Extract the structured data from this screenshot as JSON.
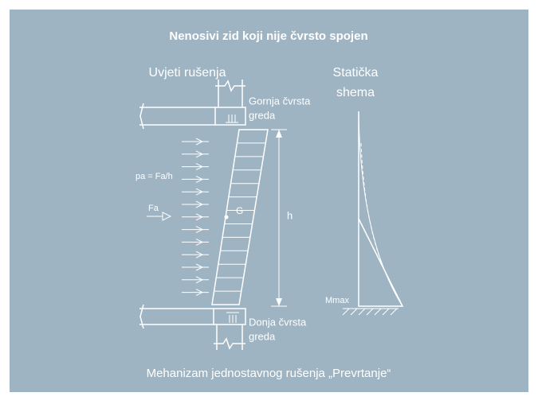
{
  "title": "Nenosivi zid koji nije čvrsto spojen",
  "left_heading": "Uvjeti rušenja",
  "right_heading": [
    "Statička",
    "shema"
  ],
  "top_beam": [
    "Gornja čvrsta",
    "greda"
  ],
  "bottom_beam": [
    "Donja čvrsta",
    "greda"
  ],
  "load_label": "pa = Fa/h",
  "force_label": "Fa",
  "gravity_label": "G",
  "height_label": "h",
  "moment_label": "Mmax",
  "caption": "Mehanizam jednostavnog rušenja „Prevrtanje“"
}
